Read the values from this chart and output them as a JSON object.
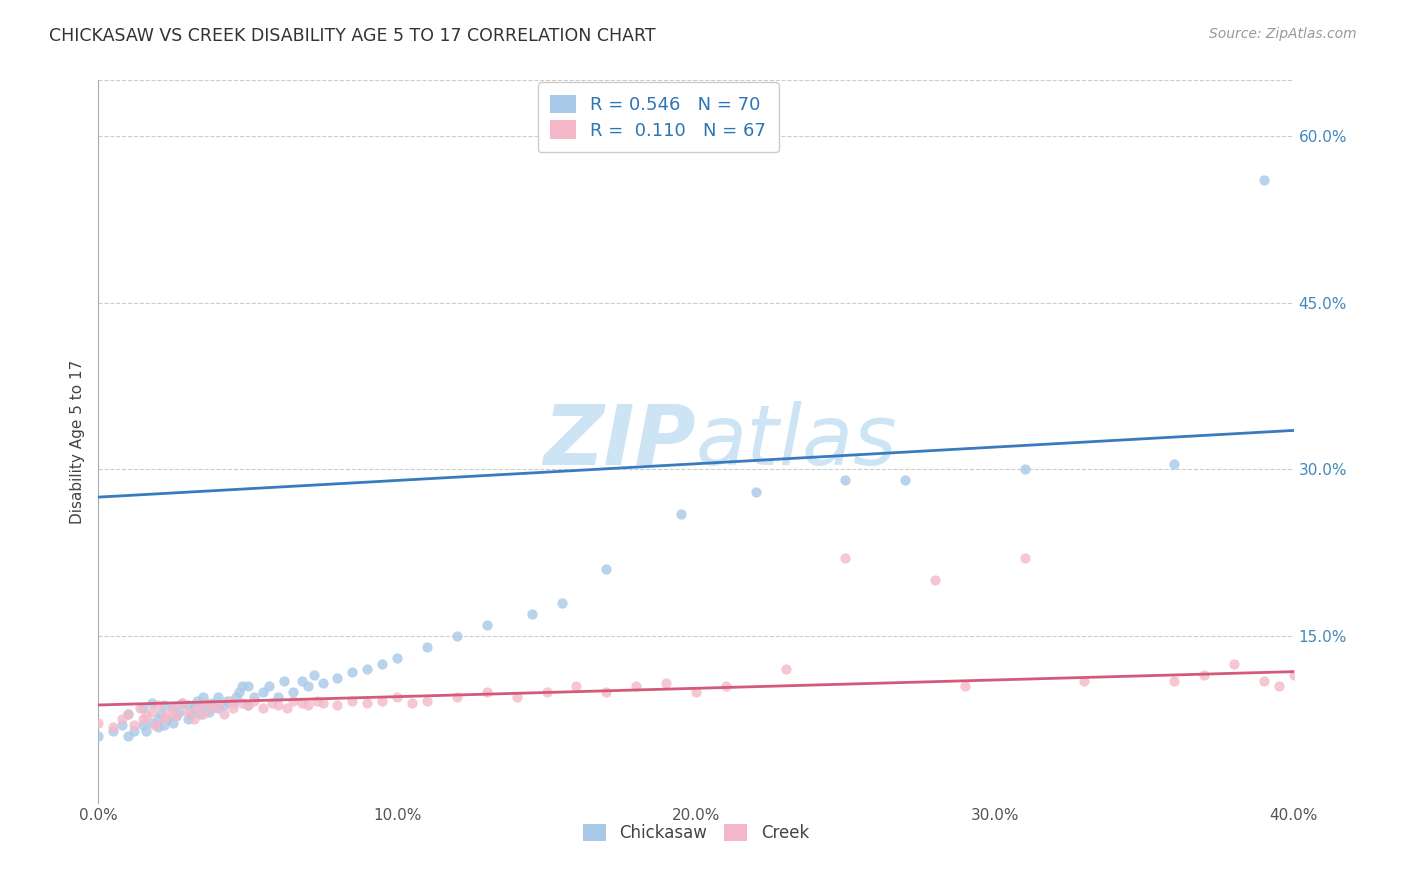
{
  "title": "CHICKASAW VS CREEK DISABILITY AGE 5 TO 17 CORRELATION CHART",
  "source": "Source: ZipAtlas.com",
  "ylabel": "Disability Age 5 to 17",
  "xlim": [
    0.0,
    0.4
  ],
  "ylim_min": 0.0,
  "ylim_max": 0.65,
  "xtick_labels": [
    "0.0%",
    "10.0%",
    "20.0%",
    "30.0%",
    "40.0%"
  ],
  "xtick_vals": [
    0.0,
    0.1,
    0.2,
    0.3,
    0.4
  ],
  "ytick_labels": [
    "15.0%",
    "30.0%",
    "45.0%",
    "60.0%"
  ],
  "ytick_vals": [
    0.15,
    0.3,
    0.45,
    0.6
  ],
  "blue_marker_color": "#a8c8e8",
  "pink_marker_color": "#f5b8c8",
  "blue_line_color": "#3a7abf",
  "pink_line_color": "#d45a7a",
  "title_color": "#2e75b6",
  "source_color": "#999999",
  "label_color": "#4488bb",
  "watermark_color": "#cce4f4",
  "grid_color": "#cccccc",
  "chickasaw_x": [
    0.0,
    0.005,
    0.008,
    0.01,
    0.01,
    0.012,
    0.015,
    0.015,
    0.016,
    0.018,
    0.018,
    0.02,
    0.02,
    0.021,
    0.022,
    0.022,
    0.023,
    0.025,
    0.025,
    0.026,
    0.027,
    0.028,
    0.03,
    0.03,
    0.031,
    0.032,
    0.033,
    0.034,
    0.035,
    0.035,
    0.037,
    0.038,
    0.04,
    0.04,
    0.042,
    0.043,
    0.045,
    0.046,
    0.047,
    0.048,
    0.05,
    0.05,
    0.052,
    0.055,
    0.057,
    0.06,
    0.062,
    0.065,
    0.068,
    0.07,
    0.072,
    0.075,
    0.08,
    0.085,
    0.09,
    0.095,
    0.1,
    0.11,
    0.12,
    0.13,
    0.145,
    0.155,
    0.17,
    0.195,
    0.22,
    0.25,
    0.27,
    0.31,
    0.36,
    0.39
  ],
  "chickasaw_y": [
    0.06,
    0.065,
    0.07,
    0.06,
    0.08,
    0.065,
    0.07,
    0.085,
    0.065,
    0.072,
    0.09,
    0.068,
    0.075,
    0.08,
    0.07,
    0.088,
    0.075,
    0.072,
    0.085,
    0.078,
    0.082,
    0.09,
    0.075,
    0.088,
    0.08,
    0.085,
    0.092,
    0.08,
    0.088,
    0.095,
    0.082,
    0.09,
    0.085,
    0.095,
    0.088,
    0.092,
    0.09,
    0.095,
    0.1,
    0.105,
    0.088,
    0.105,
    0.095,
    0.1,
    0.105,
    0.095,
    0.11,
    0.1,
    0.11,
    0.105,
    0.115,
    0.108,
    0.112,
    0.118,
    0.12,
    0.125,
    0.13,
    0.14,
    0.15,
    0.16,
    0.17,
    0.18,
    0.21,
    0.26,
    0.28,
    0.29,
    0.29,
    0.3,
    0.305,
    0.56
  ],
  "creek_x": [
    0.0,
    0.005,
    0.008,
    0.01,
    0.012,
    0.014,
    0.015,
    0.016,
    0.018,
    0.019,
    0.02,
    0.022,
    0.023,
    0.025,
    0.026,
    0.028,
    0.03,
    0.032,
    0.033,
    0.035,
    0.036,
    0.038,
    0.04,
    0.042,
    0.044,
    0.045,
    0.048,
    0.05,
    0.052,
    0.055,
    0.058,
    0.06,
    0.063,
    0.065,
    0.068,
    0.07,
    0.073,
    0.075,
    0.08,
    0.085,
    0.09,
    0.095,
    0.1,
    0.105,
    0.11,
    0.12,
    0.13,
    0.14,
    0.15,
    0.16,
    0.17,
    0.18,
    0.19,
    0.2,
    0.21,
    0.23,
    0.25,
    0.28,
    0.29,
    0.31,
    0.33,
    0.36,
    0.37,
    0.38,
    0.39,
    0.395,
    0.4
  ],
  "creek_y": [
    0.072,
    0.068,
    0.075,
    0.08,
    0.07,
    0.085,
    0.075,
    0.078,
    0.082,
    0.07,
    0.088,
    0.075,
    0.08,
    0.085,
    0.078,
    0.09,
    0.082,
    0.075,
    0.085,
    0.08,
    0.09,
    0.085,
    0.088,
    0.08,
    0.092,
    0.085,
    0.09,
    0.088,
    0.092,
    0.085,
    0.09,
    0.088,
    0.085,
    0.092,
    0.09,
    0.088,
    0.092,
    0.09,
    0.088,
    0.092,
    0.09,
    0.092,
    0.095,
    0.09,
    0.092,
    0.095,
    0.1,
    0.095,
    0.1,
    0.105,
    0.1,
    0.105,
    0.108,
    0.1,
    0.105,
    0.12,
    0.22,
    0.2,
    0.105,
    0.22,
    0.11,
    0.11,
    0.115,
    0.125,
    0.11,
    0.105,
    0.115
  ],
  "blue_line_x0": 0.0,
  "blue_line_x1": 0.4,
  "blue_line_y0": 0.275,
  "blue_line_y1": 0.335,
  "pink_line_x0": 0.0,
  "pink_line_x1": 0.4,
  "pink_line_y0": 0.088,
  "pink_line_y1": 0.118
}
